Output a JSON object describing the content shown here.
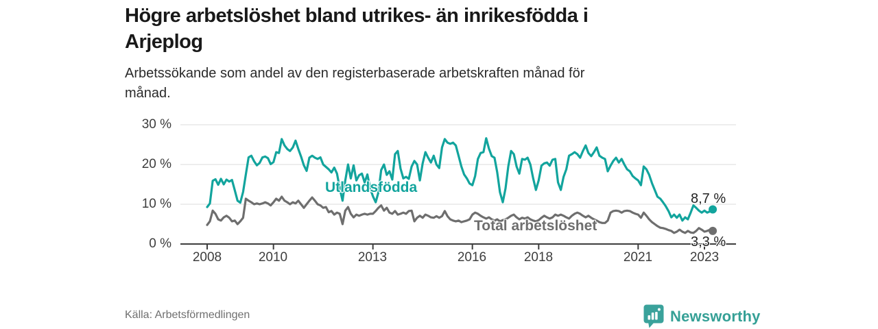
{
  "header": {
    "title_lines": [
      "Högre arbetslöshet bland utrikes- än inrikesfödda i",
      "Arjeplog"
    ],
    "subtitle_lines": [
      "Arbetssökande som andel av den registerbaserade arbetskraften månad för",
      "månad."
    ]
  },
  "chart_data": {
    "type": "line",
    "title": "Högre arbetslöshet bland utrikes- än inrikesfödda i Arjeplog",
    "subtitle": "Arbetssökande som andel av den registerbaserade arbetskraften månad för månad.",
    "unit": "%",
    "x_start_year": 2008,
    "points_per_year": 12,
    "ylim": [
      0,
      30
    ],
    "grid": true,
    "y_ticks": [
      "30 %",
      "20 %",
      "10 %",
      "0 %"
    ],
    "y_tick_values": [
      30,
      20,
      10,
      0
    ],
    "x_ticks": [
      "2008",
      "2010",
      "2013",
      "2016",
      "2018",
      "2021",
      "2023"
    ],
    "x_tick_years": [
      2008,
      2010,
      2013,
      2016,
      2018,
      2021,
      2023
    ],
    "series": [
      {
        "name": "Utlandsfödda",
        "color": "#12a49d",
        "end_label": "8,7 %",
        "end_value": 8.7,
        "values": [
          9.3,
          10.2,
          15.9,
          16.3,
          14.9,
          16.4,
          15.0,
          16.2,
          15.7,
          16.1,
          13.5,
          10.9,
          10.4,
          13.1,
          17.5,
          21.8,
          22.2,
          20.8,
          19.8,
          20.4,
          21.8,
          22.0,
          21.6,
          20.1,
          20.6,
          23.1,
          22.9,
          26.4,
          24.8,
          23.9,
          23.4,
          24.3,
          26.0,
          23.9,
          22.0,
          19.8,
          18.4,
          21.7,
          22.2,
          21.7,
          21.4,
          21.8,
          20.0,
          19.4,
          18.8,
          18.0,
          19.2,
          17.7,
          14.0,
          10.9,
          16.0,
          20.0,
          16.5,
          19.8,
          16.0,
          17.3,
          17.7,
          15.5,
          17.5,
          14.0,
          12.0,
          10.5,
          13.0,
          18.6,
          20.0,
          17.4,
          18.3,
          16.2,
          22.6,
          23.4,
          19.0,
          16.5,
          16.9,
          16.4,
          19.5,
          20.9,
          20.0,
          16.0,
          20.3,
          23.1,
          21.7,
          20.5,
          22.2,
          20.0,
          19.1,
          24.3,
          26.4,
          25.5,
          25.2,
          25.5,
          24.8,
          22.2,
          19.5,
          17.5,
          16.5,
          15.2,
          14.8,
          17.1,
          21.4,
          22.9,
          23.1,
          26.6,
          24.0,
          22.1,
          21.7,
          18.0,
          13.0,
          10.5,
          14.0,
          19.5,
          23.4,
          22.6,
          19.5,
          17.7,
          21.4,
          21.2,
          21.7,
          20.0,
          16.5,
          13.6,
          16.0,
          19.7,
          20.3,
          20.5,
          19.7,
          21.2,
          21.4,
          15.5,
          13.6,
          16.9,
          18.8,
          22.2,
          22.6,
          23.1,
          22.6,
          21.7,
          23.4,
          24.8,
          22.9,
          22.1,
          23.1,
          24.3,
          22.2,
          21.7,
          21.4,
          18.3,
          19.7,
          20.9,
          21.7,
          20.5,
          21.4,
          20.0,
          18.8,
          18.3,
          17.1,
          16.5,
          16.0,
          14.8,
          19.5,
          18.8,
          17.4,
          15.3,
          13.6,
          11.9,
          11.4,
          10.5,
          9.5,
          8.3,
          6.7,
          7.4,
          6.6,
          7.4,
          5.9,
          6.7,
          6.2,
          7.9,
          9.7,
          9.1,
          8.4,
          7.9,
          8.4,
          7.9,
          8.2,
          8.7
        ]
      },
      {
        "name": "Total arbetslöshet",
        "color": "#6e6e6e",
        "end_label": "3,3 %",
        "end_value": 3.3,
        "values": [
          4.8,
          5.7,
          8.4,
          7.6,
          6.2,
          5.9,
          6.7,
          7.1,
          6.6,
          5.7,
          5.9,
          5.0,
          5.7,
          6.6,
          11.4,
          10.9,
          10.5,
          10.0,
          10.2,
          10.0,
          10.2,
          10.5,
          10.2,
          9.7,
          10.5,
          11.4,
          10.9,
          11.9,
          10.9,
          10.5,
          10.0,
          10.5,
          10.2,
          10.9,
          10.0,
          9.1,
          10.0,
          10.9,
          11.7,
          10.9,
          10.0,
          9.7,
          9.1,
          9.3,
          8.0,
          8.3,
          7.4,
          7.9,
          7.6,
          5.0,
          8.4,
          9.3,
          7.6,
          6.7,
          7.4,
          7.1,
          7.4,
          7.6,
          7.4,
          7.6,
          7.6,
          8.3,
          9.1,
          9.7,
          8.4,
          9.1,
          7.9,
          7.6,
          8.3,
          7.4,
          7.6,
          7.9,
          7.6,
          8.3,
          8.4,
          5.7,
          6.6,
          7.1,
          6.6,
          7.4,
          7.1,
          6.7,
          6.6,
          7.0,
          6.6,
          7.0,
          8.3,
          7.0,
          6.2,
          5.9,
          5.7,
          5.9,
          5.5,
          5.7,
          5.9,
          6.2,
          7.4,
          7.9,
          7.6,
          7.1,
          6.7,
          6.4,
          6.7,
          6.2,
          5.9,
          6.2,
          5.7,
          6.0,
          6.2,
          6.6,
          7.1,
          7.4,
          6.7,
          6.2,
          6.6,
          6.4,
          6.7,
          6.2,
          5.9,
          5.7,
          6.0,
          6.6,
          7.1,
          6.7,
          6.4,
          6.7,
          7.4,
          7.1,
          7.4,
          7.1,
          6.7,
          6.4,
          7.1,
          7.6,
          7.9,
          7.6,
          7.1,
          6.7,
          7.1,
          6.6,
          6.2,
          5.9,
          5.5,
          5.3,
          5.3,
          5.9,
          7.9,
          8.3,
          8.4,
          8.3,
          7.9,
          8.3,
          8.4,
          8.3,
          7.9,
          7.6,
          7.4,
          6.6,
          7.9,
          7.1,
          6.2,
          5.5,
          5.0,
          4.5,
          4.1,
          4.0,
          3.8,
          3.5,
          3.3,
          2.8,
          3.1,
          3.6,
          3.1,
          2.8,
          3.3,
          2.9,
          2.8,
          3.3,
          4.0,
          3.6,
          3.1,
          3.3,
          3.6,
          3.3
        ]
      }
    ]
  },
  "footer": {
    "source": "Källa: Arbetsförmedlingen",
    "brand": "Newsworthy"
  },
  "colors": {
    "accent_teal": "#12a49d",
    "series_gray": "#6e6e6e",
    "brand_teal": "#35a096",
    "grid": "#dbdbdb",
    "axis": "#3d3d3d"
  }
}
